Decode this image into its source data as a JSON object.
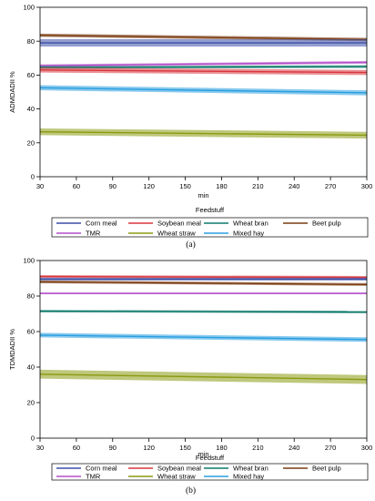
{
  "chart_data": [
    {
      "type": "line",
      "caption": "(a)",
      "xlabel": "min",
      "ylabel": "ADMDADII %",
      "xlim": [
        30,
        300
      ],
      "ylim": [
        0,
        100
      ],
      "xticks": [
        30,
        60,
        90,
        120,
        150,
        180,
        210,
        240,
        270,
        300
      ],
      "yticks": [
        0,
        20,
        40,
        60,
        80,
        100
      ],
      "legend": {
        "title": "Feedstuff",
        "placement": "bottom",
        "order": [
          "Corn meal",
          "Soybean meal",
          "Wheat bran",
          "Beet pulp",
          "TMR",
          "Wheat straw",
          "Mixed hay"
        ]
      },
      "series": [
        {
          "name": "Beet pulp",
          "color": "#7a3b10",
          "x": [
            30,
            300
          ],
          "y": [
            83.5,
            81.0
          ],
          "band": 1.0
        },
        {
          "name": "Corn meal",
          "color": "#3b4fa8",
          "x": [
            30,
            300
          ],
          "y": [
            79.0,
            79.0
          ],
          "band": 2.2
        },
        {
          "name": "TMR",
          "color": "#b34fc9",
          "x": [
            30,
            300
          ],
          "y": [
            65.5,
            67.5
          ],
          "band": 0.8
        },
        {
          "name": "Wheat bran",
          "color": "#0f7a6b",
          "x": [
            30,
            300
          ],
          "y": [
            64.5,
            65.0
          ],
          "band": 0.8
        },
        {
          "name": "Soybean meal",
          "color": "#d9363e",
          "x": [
            30,
            300
          ],
          "y": [
            63.0,
            61.5
          ],
          "band": 1.5
        },
        {
          "name": "Mixed hay",
          "color": "#2a9fe0",
          "x": [
            30,
            300
          ],
          "y": [
            52.5,
            49.5
          ],
          "band": 1.5
        },
        {
          "name": "Wheat straw",
          "color": "#8a9a10",
          "x": [
            30,
            300
          ],
          "y": [
            26.5,
            24.5
          ],
          "band": 2.0
        }
      ]
    },
    {
      "type": "line",
      "caption": "(b)",
      "xlabel": "min",
      "ylabel": "TDMDADII %",
      "xlim": [
        30,
        300
      ],
      "ylim": [
        0,
        100
      ],
      "xticks": [
        30,
        60,
        90,
        120,
        150,
        180,
        210,
        240,
        270,
        300
      ],
      "yticks": [
        0,
        20,
        40,
        60,
        80,
        100
      ],
      "legend": {
        "title": "Feedstuff",
        "placement": "bottom",
        "order": [
          "Corn meal",
          "Soybean meal",
          "Wheat bran",
          "Beet pulp",
          "TMR",
          "Wheat straw",
          "Mixed hay"
        ]
      },
      "series": [
        {
          "name": "Soybean meal",
          "color": "#d9363e",
          "x": [
            30,
            300
          ],
          "y": [
            91.0,
            90.5
          ],
          "band": 0.8
        },
        {
          "name": "Corn meal",
          "color": "#3b4fa8",
          "x": [
            30,
            300
          ],
          "y": [
            89.5,
            89.5
          ],
          "band": 0.8
        },
        {
          "name": "Beet pulp",
          "color": "#7a3b10",
          "x": [
            30,
            300
          ],
          "y": [
            88.0,
            86.5
          ],
          "band": 0.8
        },
        {
          "name": "TMR",
          "color": "#b34fc9",
          "x": [
            30,
            300
          ],
          "y": [
            81.5,
            81.5
          ],
          "band": 0.5
        },
        {
          "name": "Wheat bran",
          "color": "#0f7a6b",
          "x": [
            30,
            300
          ],
          "y": [
            71.5,
            71.0
          ],
          "band": 0.7
        },
        {
          "name": "Mixed hay",
          "color": "#2a9fe0",
          "x": [
            30,
            300
          ],
          "y": [
            58.0,
            55.5
          ],
          "band": 1.3
        },
        {
          "name": "Wheat straw",
          "color": "#8a9a10",
          "x": [
            30,
            300
          ],
          "y": [
            36.0,
            33.0
          ],
          "band": 2.5
        }
      ]
    }
  ]
}
